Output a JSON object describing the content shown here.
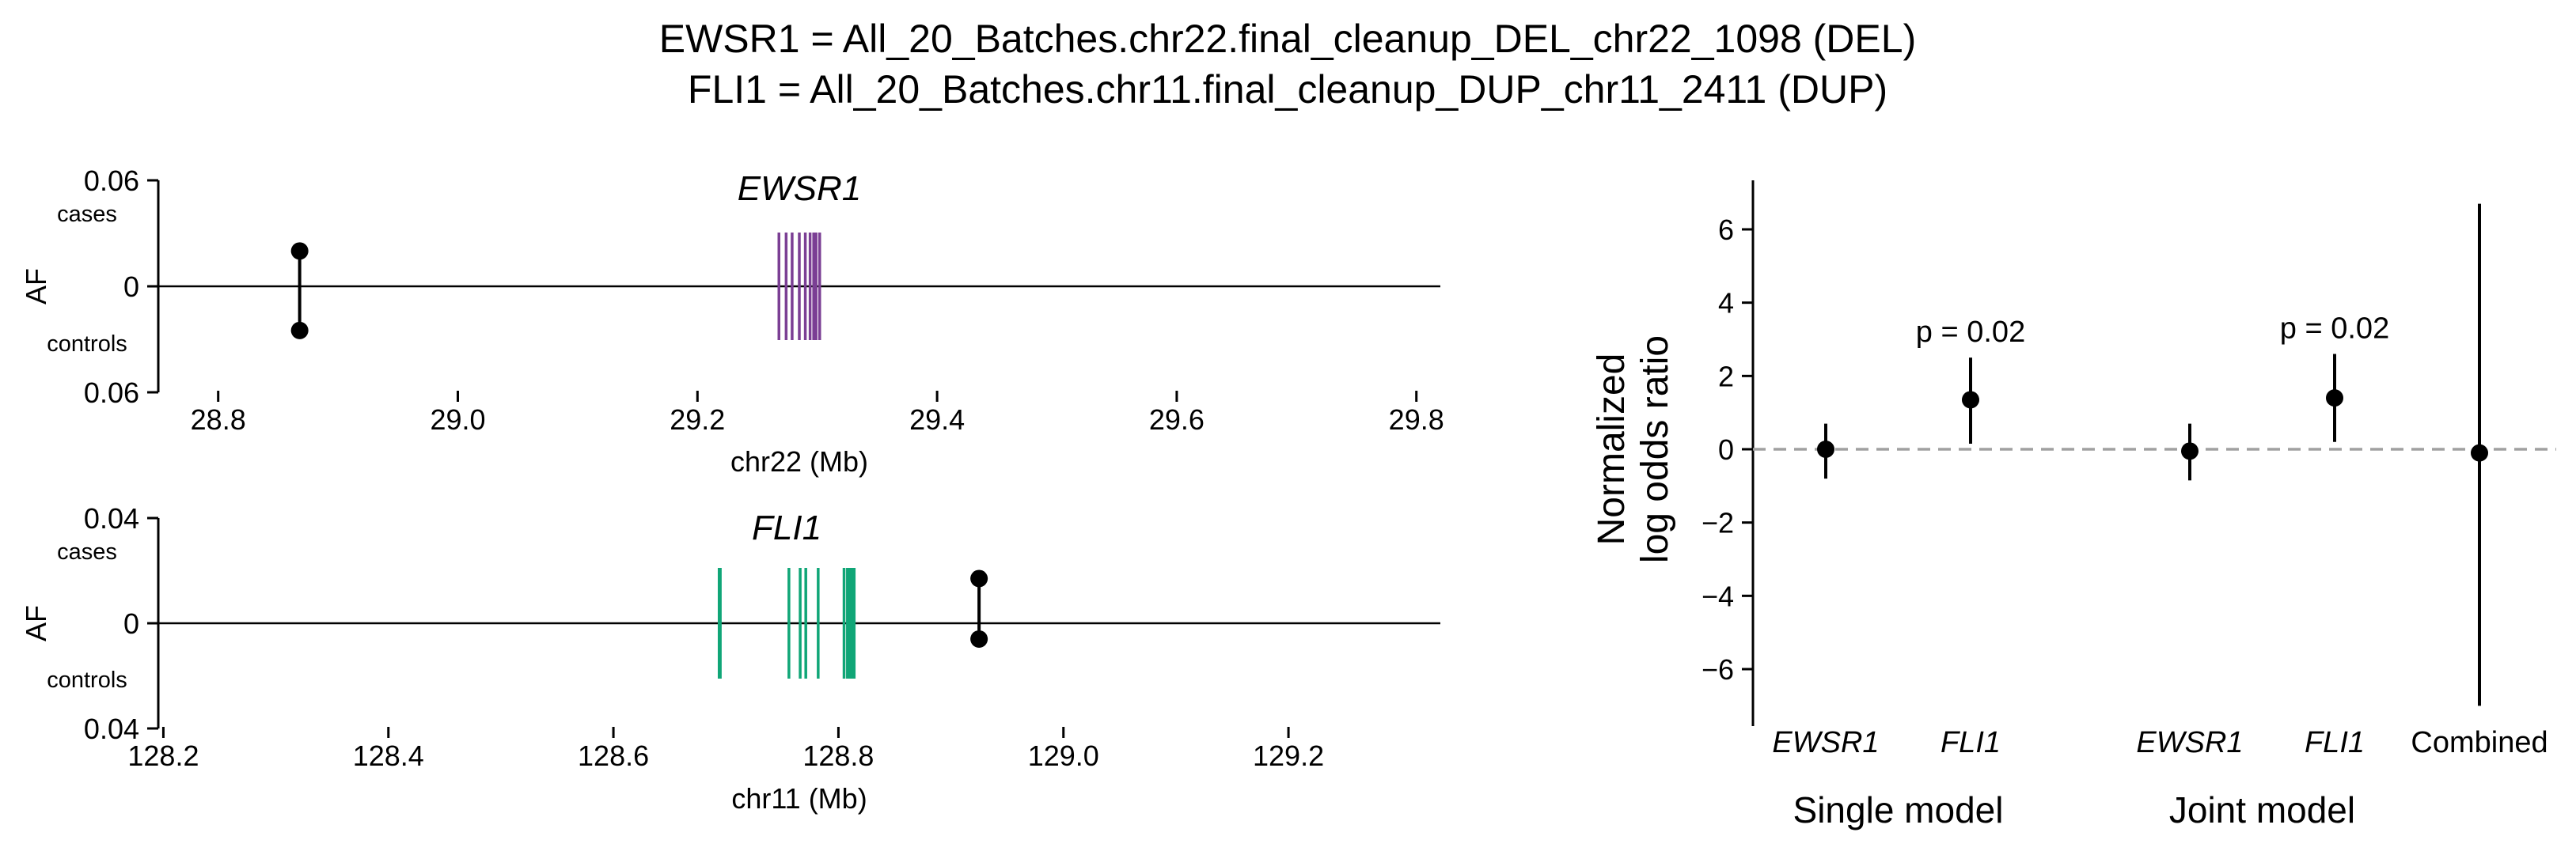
{
  "title": {
    "line1": "EWSR1 = All_20_Batches.chr22.final_cleanup_DEL_chr22_1098 (DEL)",
    "line2": "FLI1 = All_20_Batches.chr11.final_cleanup_DUP_chr11_2411 (DUP)"
  },
  "colors": {
    "ewsr1_exon": "#7B3F94",
    "fli1_exon": "#10A677",
    "point": "#000000",
    "axis": "#000000",
    "reference_line": "#A0A0A0"
  },
  "chart_data": [
    {
      "type": "lollipop",
      "panel": "ewsr1-locus",
      "gene_label": "EWSR1",
      "xlabel": "chr22 (Mb)",
      "ylabel": "AF",
      "cases_label": "cases",
      "controls_label": "controls",
      "xlim": [
        28.75,
        29.82
      ],
      "x_ticks": [
        28.8,
        29.0,
        29.2,
        29.4,
        29.6,
        29.8
      ],
      "x_tick_labels": [
        "28.8",
        "29.0",
        "29.2",
        "29.4",
        "29.6",
        "29.8"
      ],
      "ylim": [
        -0.06,
        0.06
      ],
      "y_tick_labels": {
        "top": "0.06",
        "zero": "0",
        "bottom": "0.06"
      },
      "variant": {
        "x": 28.868,
        "case_af": 0.02,
        "control_af": -0.025
      },
      "exons": [
        29.268,
        29.274,
        29.279,
        29.285,
        29.29,
        29.294,
        29.297,
        29.299,
        29.302
      ],
      "exon_color": "#7B3F94"
    },
    {
      "type": "lollipop",
      "panel": "fli1-locus",
      "gene_label": "FLI1",
      "xlabel": "chr11 (Mb)",
      "ylabel": "AF",
      "cases_label": "cases",
      "controls_label": "controls",
      "xlim": [
        128.18,
        129.335
      ],
      "x_ticks": [
        128.2,
        128.4,
        128.6,
        128.8,
        129.0,
        129.2
      ],
      "x_tick_labels": [
        "128.2",
        "128.4",
        "128.6",
        "128.8",
        "129.0",
        "129.2"
      ],
      "ylim": [
        -0.04,
        0.04
      ],
      "y_tick_labels": {
        "top": "0.04",
        "zero": "0",
        "bottom": "0.04"
      },
      "variant": {
        "x": 128.925,
        "case_af": 0.017,
        "control_af": -0.006
      },
      "exons": [
        128.694,
        128.695,
        128.756,
        128.766,
        128.771,
        128.782,
        128.805,
        128.808,
        128.81,
        128.812,
        128.814
      ],
      "exon_color": "#10A677"
    },
    {
      "type": "errorbar",
      "panel": "log-odds",
      "ylabel_line1": "Normalized",
      "ylabel_line2": "log odds ratio",
      "ylim": [
        -7.5,
        7.2
      ],
      "y_ticks": [
        6,
        4,
        2,
        0,
        -2,
        -4,
        -6
      ],
      "y_tick_labels": [
        "6",
        "4",
        "2",
        "0",
        "−2",
        "−4",
        "−6"
      ],
      "reference_y": 0,
      "groups": [
        {
          "label": "Single model",
          "categories": [
            "EWSR1",
            "FLI1"
          ]
        },
        {
          "label": "Joint model",
          "categories": [
            "EWSR1",
            "FLI1",
            "Combined"
          ]
        }
      ],
      "points": [
        {
          "category": "EWSR1",
          "group": "Single model",
          "estimate": 0.0,
          "lower": -0.8,
          "upper": 0.7,
          "italic": true
        },
        {
          "category": "FLI1",
          "group": "Single model",
          "estimate": 1.35,
          "lower": 0.15,
          "upper": 2.5,
          "italic": true,
          "annotation": "p = 0.02"
        },
        {
          "category": "EWSR1",
          "group": "Joint model",
          "estimate": -0.05,
          "lower": -0.85,
          "upper": 0.7,
          "italic": true
        },
        {
          "category": "FLI1",
          "group": "Joint model",
          "estimate": 1.4,
          "lower": 0.2,
          "upper": 2.6,
          "italic": true,
          "annotation": "p = 0.02"
        },
        {
          "category": "Combined",
          "group": "Joint model",
          "estimate": -0.1,
          "lower": -7.0,
          "upper": 6.7,
          "italic": false
        }
      ]
    }
  ]
}
